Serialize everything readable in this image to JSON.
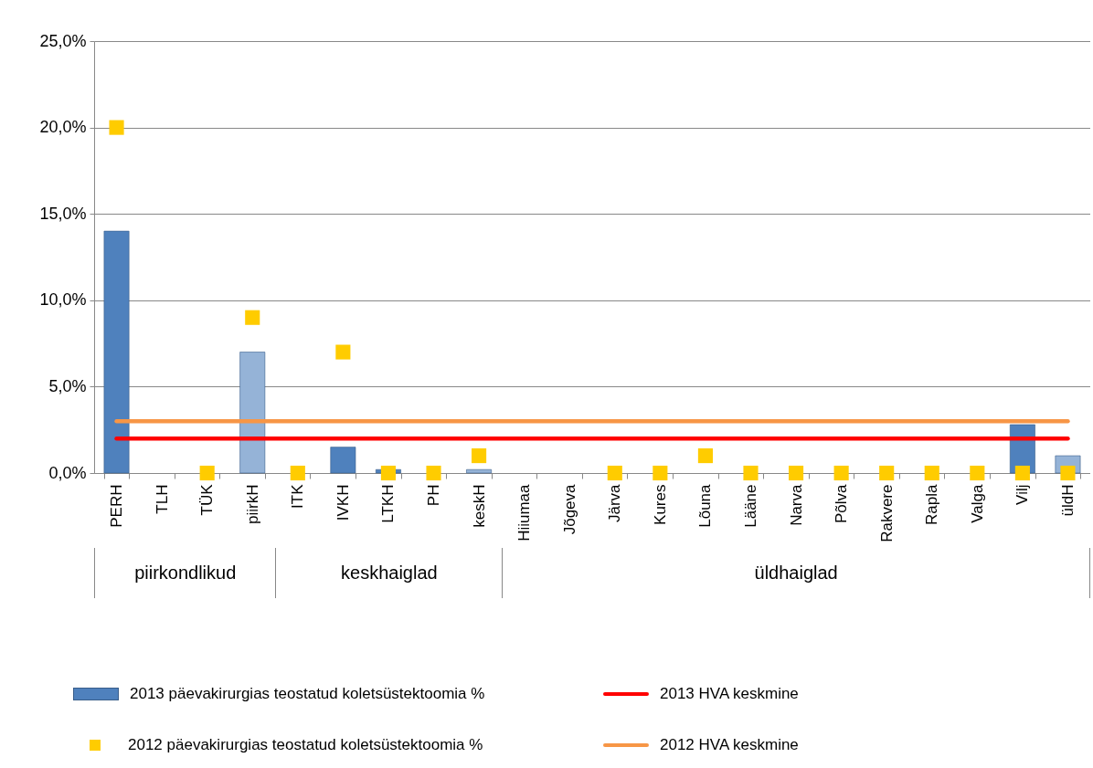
{
  "chart_data": {
    "type": "bar",
    "categories": [
      "PERH",
      "TLH",
      "TÜK",
      "piirkH",
      "ITK",
      "IVKH",
      "LTKH",
      "PH",
      "keskH",
      "Hiiumaa",
      "Jõgeva",
      "Järva",
      "Kures",
      "Lõuna",
      "Lääne",
      "Narva",
      "Põlva",
      "Rakvere",
      "Rapla",
      "Valga",
      "Vilj",
      "üldH"
    ],
    "series": [
      {
        "name": "2013 päevakirurgias teostatud  koletsüstektoomia %",
        "colors": [
          "#4f81bd",
          "#4f81bd",
          "#4f81bd",
          "#95b3d7",
          "#4f81bd",
          "#4f81bd",
          "#4f81bd",
          "#4f81bd",
          "#95b3d7",
          "#4f81bd",
          "#4f81bd",
          "#4f81bd",
          "#4f81bd",
          "#4f81bd",
          "#4f81bd",
          "#4f81bd",
          "#4f81bd",
          "#4f81bd",
          "#4f81bd",
          "#4f81bd",
          "#4f81bd",
          "#95b3d7"
        ],
        "values": [
          14.0,
          null,
          null,
          7.0,
          null,
          1.5,
          0.2,
          null,
          0.2,
          null,
          null,
          null,
          null,
          null,
          null,
          null,
          null,
          null,
          null,
          null,
          2.8,
          1.0
        ]
      },
      {
        "name": "2012 päevakirurgias teostatud koletsüstektoomia %",
        "type": "scatter",
        "color": "#ffcc00",
        "marker": "square",
        "values": [
          20.0,
          null,
          0,
          9.0,
          0,
          7.0,
          0,
          0,
          1.0,
          null,
          null,
          0,
          0,
          1.0,
          0,
          0,
          0,
          0,
          0,
          0,
          0,
          0
        ]
      },
      {
        "name": "2013 HVA keskmine",
        "type": "line",
        "color": "#ff0000",
        "values": [
          2.0,
          2.0,
          2.0,
          2.0,
          2.0,
          2.0,
          2.0,
          2.0,
          2.0,
          2.0,
          2.0,
          2.0,
          2.0,
          2.0,
          2.0,
          2.0,
          2.0,
          2.0,
          2.0,
          2.0,
          2.0,
          2.0
        ]
      },
      {
        "name": "2012 HVA keskmine",
        "type": "line",
        "color": "#f79646",
        "values": [
          3.0,
          3.0,
          3.0,
          3.0,
          3.0,
          3.0,
          3.0,
          3.0,
          3.0,
          3.0,
          3.0,
          3.0,
          3.0,
          3.0,
          3.0,
          3.0,
          3.0,
          3.0,
          3.0,
          3.0,
          3.0,
          3.0
        ]
      }
    ],
    "ylim": [
      0,
      25
    ],
    "yticks": [
      {
        "value": 0,
        "label": "0,0%"
      },
      {
        "value": 5,
        "label": "5,0%"
      },
      {
        "value": 10,
        "label": "10,0%"
      },
      {
        "value": 15,
        "label": "15,0%"
      },
      {
        "value": 20,
        "label": "20,0%"
      },
      {
        "value": 25,
        "label": "25,0%"
      }
    ],
    "grid": "y",
    "legend": "bottom",
    "annotations": [
      "piirkondlikud",
      "keskhaiglad",
      "üldhaiglad"
    ]
  }
}
